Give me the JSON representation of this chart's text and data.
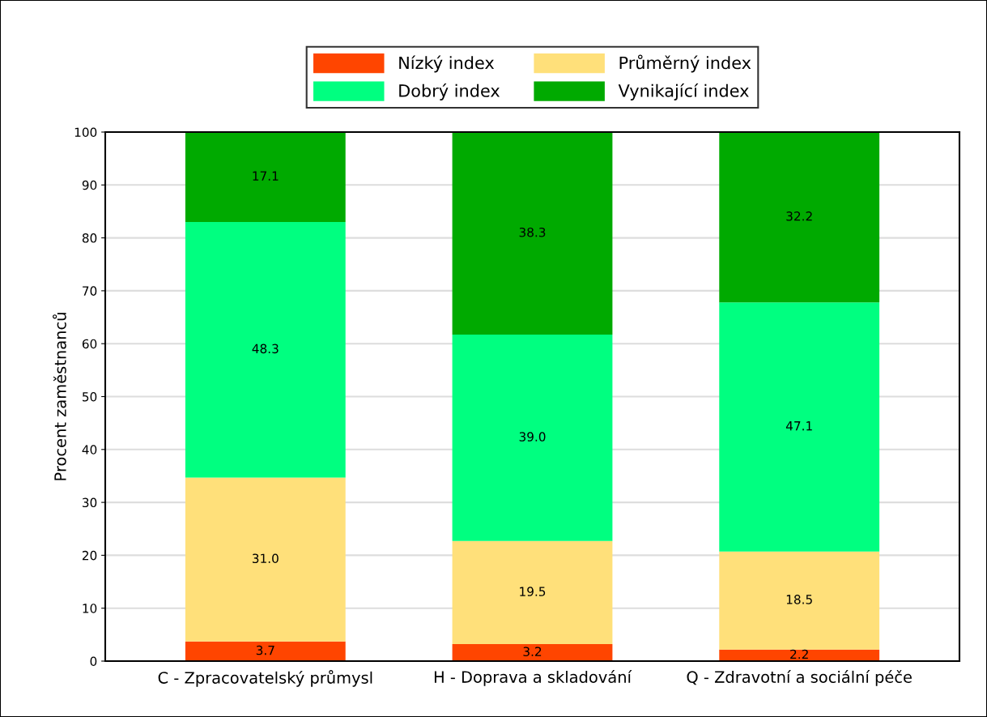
{
  "chart_data": {
    "type": "bar",
    "stacked": true,
    "ylabel": "Procent zaměstnanců",
    "categories": [
      "C - Zpracovatelský průmysl",
      "H - Doprava a skladování",
      "Q - Zdravotní a sociální péče"
    ],
    "series": [
      {
        "name": "Nízký index",
        "color": "#ff4500",
        "values": [
          3.7,
          3.2,
          2.2
        ],
        "value_labels": [
          "3.7",
          "3.2",
          "2.2"
        ]
      },
      {
        "name": "Průměrný index",
        "color": "#ffe07a",
        "values": [
          31.0,
          19.5,
          18.5
        ],
        "value_labels": [
          "31.0",
          "19.5",
          "18.5"
        ]
      },
      {
        "name": "Dobrý index",
        "color": "#00ff80",
        "values": [
          48.3,
          39.0,
          47.1
        ],
        "value_labels": [
          "48.3",
          "39.0",
          "47.1"
        ]
      },
      {
        "name": "Vynikající index",
        "color": "#00aa00",
        "values": [
          17.1,
          38.3,
          32.2
        ],
        "value_labels": [
          "17.1",
          "38.3",
          "32.2"
        ]
      }
    ],
    "ylim": [
      0,
      100
    ],
    "yticks": [
      0,
      10,
      20,
      30,
      40,
      50,
      60,
      70,
      80,
      90,
      100
    ],
    "grid": "y",
    "legend": "top"
  }
}
